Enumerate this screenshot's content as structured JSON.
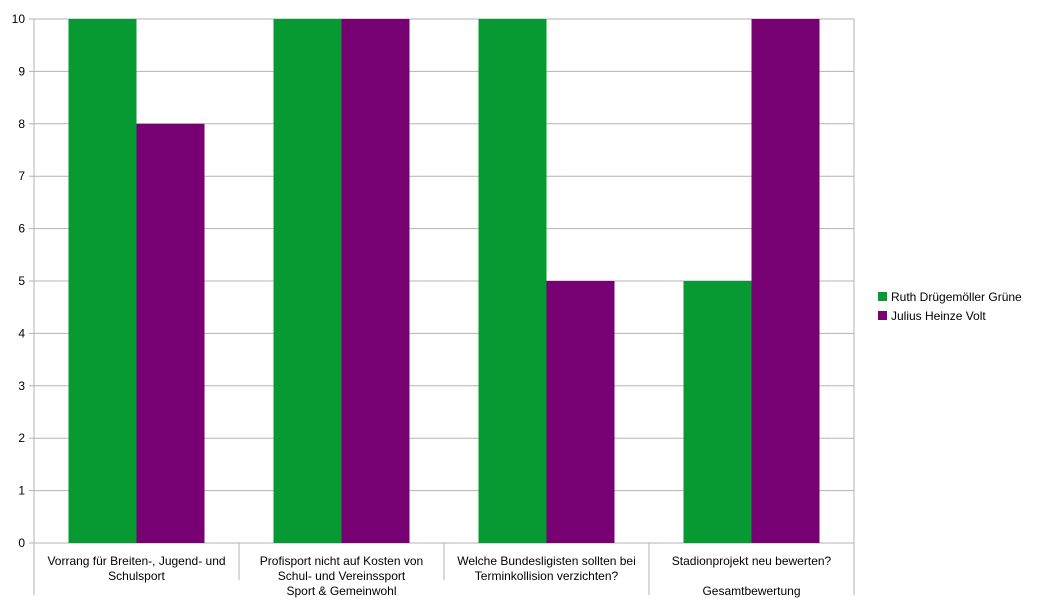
{
  "chart_data": {
    "type": "bar",
    "categories": [
      [
        "Vorrang für Breiten-, Jugend- und",
        "Schulsport"
      ],
      [
        "Profisport nicht auf Kosten von",
        "Schul- und Vereinssport"
      ],
      [
        "Welche Bundesligisten sollten bei",
        "Terminkollision verzichten?"
      ],
      [
        "Stadionprojekt neu bewerten?"
      ]
    ],
    "groups": [
      {
        "label": "Sport & Gemeinwohl",
        "categories": [
          0,
          1,
          2
        ]
      },
      {
        "label": "Gesamtbewertung",
        "categories": [
          3
        ]
      }
    ],
    "series": [
      {
        "name": "Ruth Drügemöller Grüne",
        "color": "#079932",
        "values": [
          10,
          10,
          10,
          5
        ]
      },
      {
        "name": "Julius Heinze Volt",
        "color": "#770073",
        "values": [
          8,
          10,
          5,
          10
        ]
      }
    ],
    "ylim": [
      0,
      10
    ],
    "yticks": [
      "0",
      "1",
      "2",
      "3",
      "4",
      "5",
      "6",
      "7",
      "8",
      "9",
      "10"
    ],
    "grid": true,
    "legend_position": "right"
  }
}
